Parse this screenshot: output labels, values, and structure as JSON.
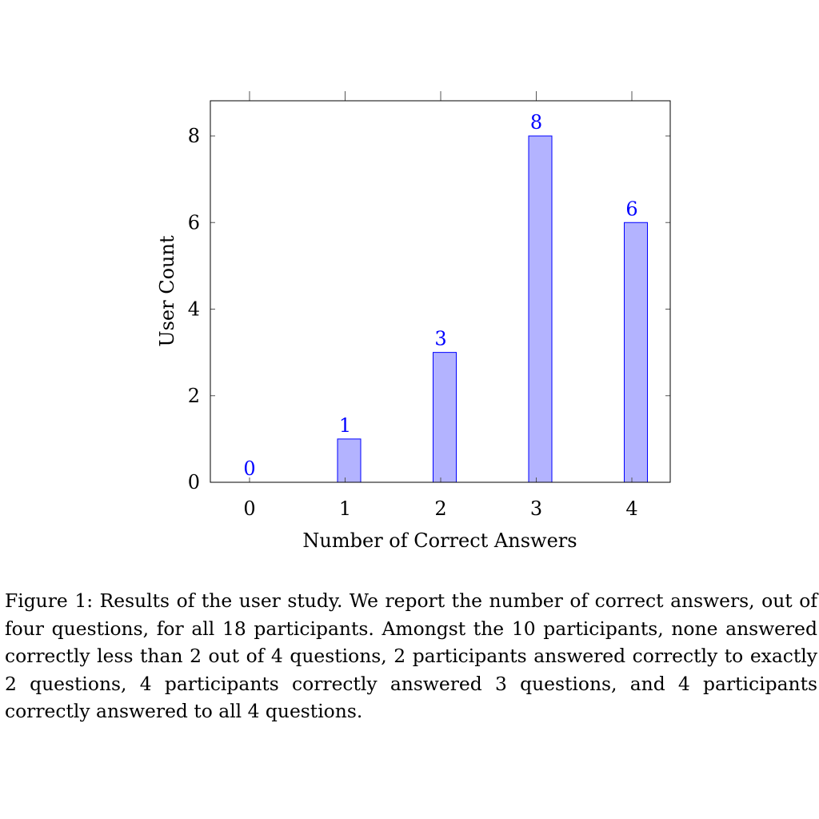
{
  "chart_data": {
    "type": "bar",
    "x": [
      0,
      1,
      2,
      3,
      4
    ],
    "values": [
      0,
      1,
      3,
      8,
      6
    ],
    "data_labels": [
      "0",
      "1",
      "3",
      "8",
      "6"
    ],
    "xlabel": "Number of Correct Answers",
    "ylabel": "User Count",
    "xticks": [
      "0",
      "1",
      "2",
      "3",
      "4"
    ],
    "yticks": [
      "0",
      "2",
      "4",
      "6",
      "8"
    ],
    "ylim": [
      0,
      8.8
    ],
    "grid": false,
    "bar_fill": "#b3b3ff",
    "bar_stroke": "#0000ff",
    "label_color": "#0000ff"
  },
  "caption": {
    "label": "Figure 1:",
    "text": "Results of the user study. We report the number of correct answers, out of four questions, for all 18 participants.  Amongst the 10 participants, none answered correctly less than 2 out of 4 questions, 2 participants answered correctly to exactly 2 questions, 4 participants correctly answered 3 questions, and 4 participants correctly answered to all 4 questions."
  }
}
